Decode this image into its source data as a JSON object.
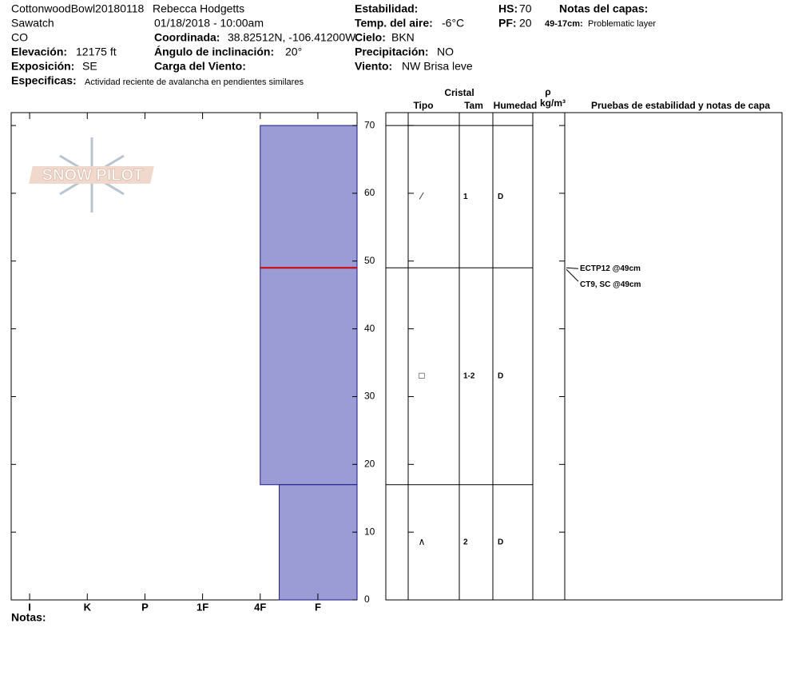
{
  "header": {
    "site": "CottonwoodBowl20180118",
    "observer": "Rebecca Hodgetts",
    "range": "Sawatch",
    "date": "01/18/2018 - 10:00am",
    "state": "CO",
    "stability_label": "Estabilidad:",
    "hs_label": "HS:",
    "hs": 70,
    "notes_label": "Notas del capas:",
    "air_temp_label": "Temp. del aire:",
    "air_temp": "-6°C",
    "pf_label": "PF:",
    "pf": 20,
    "layer_note_range": "49-17cm:",
    "layer_note": "Problematic layer",
    "coord_label": "Coordinada:",
    "coord": "38.82512N, -106.41200W",
    "sky_label": "Cielo:",
    "sky": "BKN",
    "elev_label": "Elevación:",
    "elev": "12175 ft",
    "slope_label": "Ángulo de inclinación:",
    "slope": "20°",
    "precip_label": "Precipitación:",
    "precip": "NO",
    "aspect_label": "Exposición:",
    "aspect": "SE",
    "wind_load_label": "Carga del Viento:",
    "wind_label": "Viento:",
    "wind": "NW Brisa leve",
    "specifics_label": "Especificas:",
    "specifics": "Actividad reciente de avalancha en pendientes similares",
    "logo": "SNOW PILOT"
  },
  "notes_label": "Notas:",
  "chart_data": {
    "type": "snowprofile",
    "ylim": [
      0,
      71.9
    ],
    "yticks": [
      0,
      10,
      20,
      30,
      40,
      50,
      60,
      70
    ],
    "xlim": [
      6.32,
      0.32
    ],
    "xticks": [
      {
        "value": 6,
        "label": "I"
      },
      {
        "value": 5,
        "label": "K"
      },
      {
        "value": 4,
        "label": "P"
      },
      {
        "value": 3,
        "label": "1F"
      },
      {
        "value": 2,
        "label": "4F"
      },
      {
        "value": 1,
        "label": "F"
      }
    ],
    "color": "#9b9bd6",
    "columns": {
      "crystal": "Cristal",
      "type": "Tipo",
      "size": "Tam",
      "moisture": "Humedad",
      "density": "ρ",
      "density_unit": "kg/m³",
      "tests": "Pruebas de estabilidad y notas de capa"
    },
    "layers": [
      {
        "top": 70,
        "bottom": 49,
        "hardness": 2,
        "grain": "⁄",
        "size": "1",
        "moisture": "D"
      },
      {
        "top": 49,
        "bottom": 17,
        "hardness": 2,
        "grain": "□",
        "size": "1-2",
        "moisture": "D"
      },
      {
        "top": 17,
        "bottom": 0,
        "hardness": 1.67,
        "grain": "∧",
        "size": "2",
        "moisture": "D"
      }
    ],
    "tests": [
      {
        "label": "ECTP12 @49cm",
        "depth": 49
      },
      {
        "label": "CT9, SC @49cm",
        "depth": 49
      }
    ],
    "test_color": "#cc0000"
  }
}
